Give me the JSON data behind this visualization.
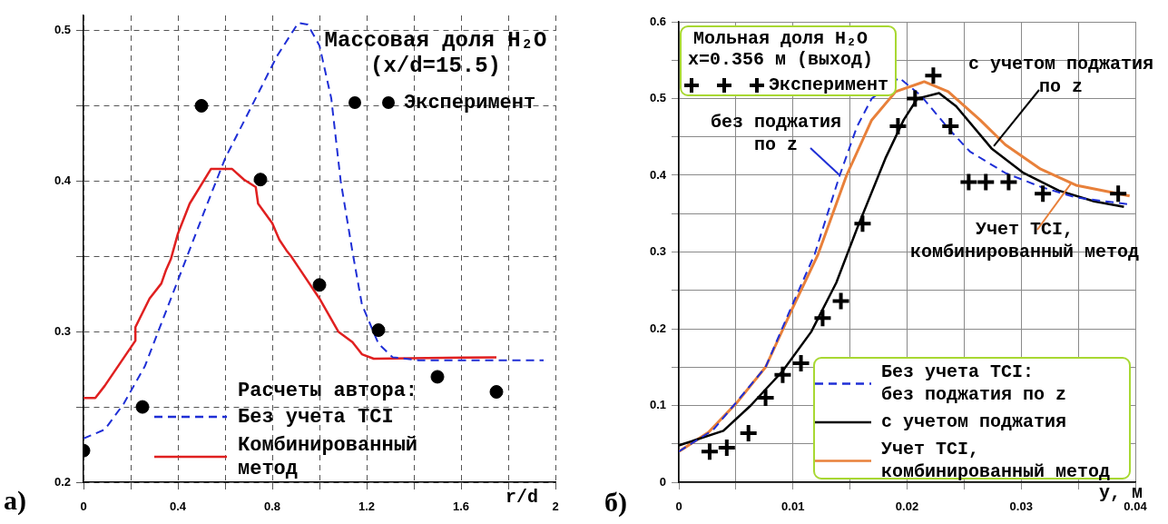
{
  "chart_data": [
    {
      "type": "line",
      "title": "Массовая доля H₂O",
      "subtitle": "(x/d=15.5)",
      "xlabel": "r/d",
      "legend_title": "Расчеты автора:",
      "legend": "bottom",
      "xlim": [
        0,
        2
      ],
      "ylim": [
        0.2,
        0.51
      ],
      "xticks": [
        0,
        {
          "value": 0.2,
          "label": null
        },
        0.4,
        {
          "value": 0.6,
          "label": null
        },
        0.8,
        {
          "value": 1.0,
          "label": null
        },
        1.2,
        {
          "value": 1.4,
          "label": null
        },
        1.6,
        {
          "value": 1.8,
          "label": null
        },
        2
      ],
      "yticks": [
        0.2,
        {
          "value": 0.25,
          "label": null
        },
        0.3,
        {
          "value": 0.35,
          "label": null
        },
        0.4,
        {
          "value": 0.45,
          "label": null
        },
        0.5
      ],
      "grid": true,
      "annotations": [
        "а)"
      ],
      "series": [
        {
          "name": "Эксперимент",
          "type": "scatter",
          "marker": "circle",
          "color": "#000000",
          "x": [
            0,
            0.25,
            0.5,
            0.75,
            1.0,
            1.25,
            1.5,
            1.75
          ],
          "values": [
            0.221,
            0.25,
            0.45,
            0.401,
            0.331,
            0.301,
            0.27,
            0.26
          ]
        },
        {
          "name": "Без учета TCI",
          "type": "line",
          "marker": "none",
          "line_style": "dashed",
          "color": "#1f2fd6",
          "x": [
            0,
            0.09,
            0.17,
            0.26,
            0.4,
            0.51,
            0.6,
            0.72,
            0.82,
            0.91,
            0.95,
            1.0,
            1.05,
            1.09,
            1.14,
            1.18,
            1.25,
            1.31,
            1.42,
            1.95
          ],
          "values": [
            0.229,
            0.235,
            0.252,
            0.277,
            0.334,
            0.379,
            0.415,
            0.452,
            0.483,
            0.505,
            0.504,
            0.49,
            0.455,
            0.4,
            0.353,
            0.318,
            0.292,
            0.283,
            0.281,
            0.281
          ]
        },
        {
          "name": "Комбинированный метод",
          "type": "line",
          "marker": "none",
          "line_style": "solid",
          "color": "#e02020",
          "x": [
            0,
            0.05,
            0.09,
            0.22,
            0.22,
            0.28,
            0.33,
            0.35,
            0.37,
            0.4,
            0.45,
            0.54,
            0.63,
            0.68,
            0.73,
            0.74,
            0.8,
            0.83,
            0.86,
            0.88,
            0.91,
            1.0,
            1.08,
            1.14,
            1.18,
            1.23,
            1.75
          ],
          "values": [
            0.256,
            0.256,
            0.264,
            0.294,
            0.303,
            0.322,
            0.332,
            0.341,
            0.348,
            0.365,
            0.385,
            0.408,
            0.408,
            0.401,
            0.396,
            0.385,
            0.372,
            0.361,
            0.354,
            0.35,
            0.343,
            0.322,
            0.3,
            0.293,
            0.285,
            0.282,
            0.283
          ]
        }
      ]
    },
    {
      "type": "line",
      "title": "Мольная доля H₂O",
      "subtitle": "x=0.356 м (выход)",
      "xlabel": "y, м",
      "legend": "bottom right",
      "xlim": [
        0,
        0.04
      ],
      "ylim": [
        0,
        0.6
      ],
      "xticks": [
        0,
        {
          "value": 0.005,
          "label": null
        },
        0.01,
        {
          "value": 0.015,
          "label": null
        },
        0.02,
        {
          "value": 0.025,
          "label": null
        },
        0.03,
        {
          "value": 0.035,
          "label": null
        },
        0.04
      ],
      "yticks": [
        0,
        {
          "value": 0.05,
          "label": null
        },
        0.1,
        {
          "value": 0.15,
          "label": null
        },
        0.2,
        {
          "value": 0.25,
          "label": null
        },
        0.3,
        {
          "value": 0.35,
          "label": null
        },
        0.4,
        {
          "value": 0.45,
          "label": null
        },
        0.5,
        {
          "value": 0.55,
          "label": null
        },
        0.6
      ],
      "grid": true,
      "annotations": [
        {
          "text": "без поджатия по z",
          "x": 0.0141,
          "y": 0.4
        },
        {
          "text": "с учетом поджатия по z",
          "x": 0.0276,
          "y": 0.438
        },
        {
          "text": "Учет TCI, комбинированный метод",
          "x": 0.0344,
          "y": 0.39
        },
        "б)"
      ],
      "series": [
        {
          "name": "Эксперимент",
          "type": "scatter",
          "marker": "cross",
          "color": "#000000",
          "x": [
            0.0027,
            0.0042,
            0.0061,
            0.0076,
            0.0091,
            0.0107,
            0.0126,
            0.0142,
            0.0161,
            0.0192,
            0.0207,
            0.0223,
            0.0238,
            0.0254,
            0.0269,
            0.0289,
            0.0319,
            0.0385
          ],
          "values": [
            0.04,
            0.045,
            0.064,
            0.11,
            0.14,
            0.155,
            0.214,
            0.236,
            0.337,
            0.464,
            0.5,
            0.53,
            0.464,
            0.391,
            0.391,
            0.391,
            0.376,
            0.376
          ]
        },
        {
          "name": "Без учета TCI: без поджатия по z",
          "type": "line",
          "marker": "none",
          "line_style": "dashed",
          "color": "#1f2fd6",
          "x": [
            0,
            0.003,
            0.0048,
            0.0076,
            0.01,
            0.0119,
            0.0141,
            0.0156,
            0.0169,
            0.0193,
            0.0212,
            0.0238,
            0.0255,
            0.0286,
            0.0317,
            0.0348,
            0.0395
          ],
          "values": [
            0.04,
            0.068,
            0.1,
            0.15,
            0.233,
            0.297,
            0.4,
            0.463,
            0.5,
            0.527,
            0.504,
            0.458,
            0.431,
            0.403,
            0.385,
            0.371,
            0.362
          ]
        },
        {
          "name": "с учетом поджатия",
          "type": "line",
          "marker": "none",
          "line_style": "solid",
          "color": "#000000",
          "x": [
            0,
            0.0039,
            0.0063,
            0.0091,
            0.0116,
            0.0138,
            0.0156,
            0.0181,
            0.0197,
            0.0209,
            0.0228,
            0.0243,
            0.0274,
            0.0302,
            0.0333,
            0.0364,
            0.039
          ],
          "values": [
            0.048,
            0.067,
            0.1,
            0.145,
            0.196,
            0.26,
            0.33,
            0.422,
            0.472,
            0.5,
            0.507,
            0.49,
            0.435,
            0.403,
            0.38,
            0.366,
            0.359
          ]
        },
        {
          "name": "Учет TCI, комбинированный метод",
          "type": "line",
          "marker": "none",
          "line_style": "solid",
          "color": "#e8803a",
          "x": [
            0,
            0.0026,
            0.0051,
            0.0076,
            0.01,
            0.0122,
            0.0147,
            0.0169,
            0.019,
            0.0215,
            0.0236,
            0.0264,
            0.0286,
            0.0317,
            0.0348,
            0.0395
          ],
          "values": [
            0.04,
            0.065,
            0.104,
            0.15,
            0.228,
            0.297,
            0.4,
            0.472,
            0.509,
            0.522,
            0.509,
            0.472,
            0.44,
            0.408,
            0.387,
            0.373
          ]
        }
      ]
    }
  ]
}
